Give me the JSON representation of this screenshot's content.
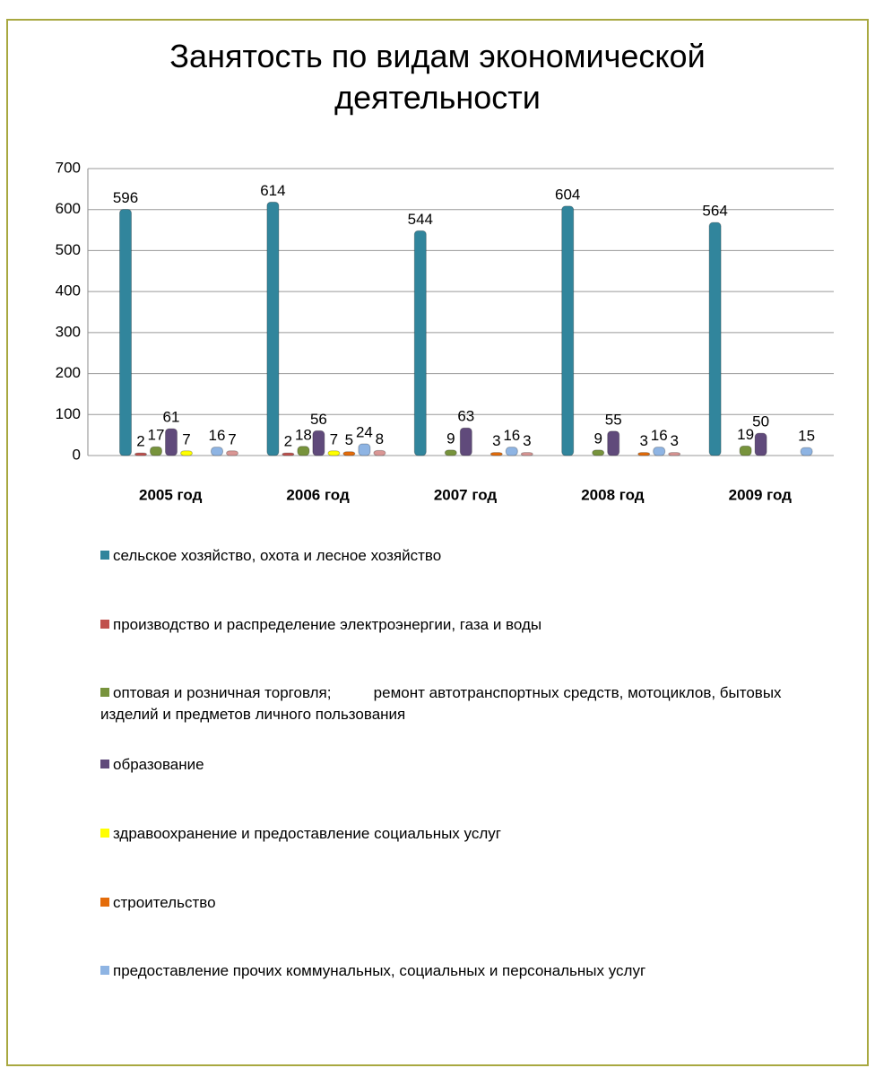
{
  "chart_data": {
    "type": "bar",
    "title": "Занятость по видам экономической деятельности",
    "categories": [
      "2005 год",
      "2006 год",
      "2007 год",
      "2008 год",
      "2009 год"
    ],
    "series": [
      {
        "name": "сельское хозяйство, охота и лесное хозяйство",
        "color": "#31859c",
        "values": [
          596,
          614,
          544,
          604,
          564
        ]
      },
      {
        "name": "производство и распределение электроэнергии, газа и воды",
        "color": "#c0504d",
        "values": [
          2,
          2,
          null,
          null,
          null
        ]
      },
      {
        "name": "оптовая и розничная торговля;          ремонт автотранспортных средств, мотоциклов, бытовых изделий и предметов личного пользования",
        "color": "#77933c",
        "values": [
          17,
          18,
          9,
          9,
          19
        ]
      },
      {
        "name": "образование",
        "color": "#604a7b",
        "values": [
          61,
          56,
          63,
          55,
          50
        ]
      },
      {
        "name": "здравоохранение и предоставление социальных услуг",
        "color": "#ffff00",
        "values": [
          7,
          7,
          null,
          null,
          null
        ]
      },
      {
        "name": "строительство",
        "color": "#e46c0a",
        "values": [
          null,
          5,
          3,
          3,
          null
        ]
      },
      {
        "name": "предоставление прочих коммунальных, социальных и персональных услуг",
        "color": "#8eb4e3",
        "values": [
          16,
          24,
          16,
          16,
          15
        ]
      },
      {
        "name": null,
        "color": "#d99694",
        "values": [
          7,
          8,
          3,
          3,
          null
        ]
      }
    ],
    "ylim": [
      0,
      700
    ],
    "yticks": [
      0,
      100,
      200,
      300,
      400,
      500,
      600,
      700
    ],
    "grid": true
  }
}
